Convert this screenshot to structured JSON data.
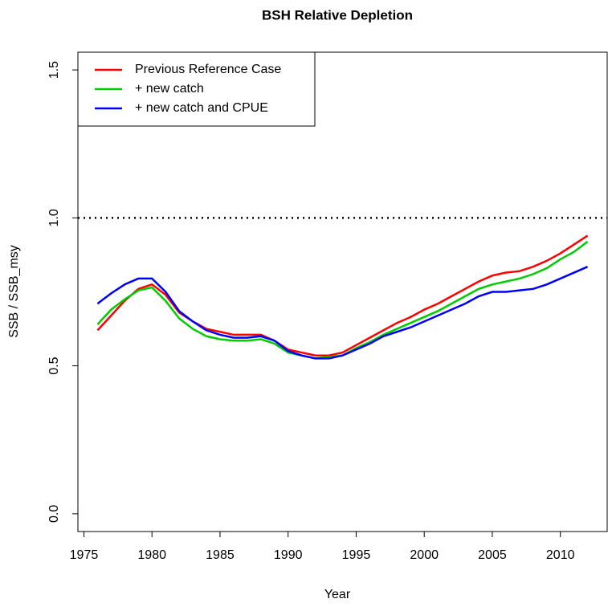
{
  "chart_data": {
    "type": "line",
    "title": "BSH Relative Depletion",
    "x_label": "Year",
    "y_label": "SSB / SSB_msy",
    "x": [
      1976,
      1977,
      1978,
      1979,
      1980,
      1981,
      1982,
      1983,
      1984,
      1985,
      1986,
      1987,
      1988,
      1989,
      1990,
      1991,
      1992,
      1993,
      1994,
      1995,
      1996,
      1997,
      1998,
      1999,
      2000,
      2001,
      2002,
      2003,
      2004,
      2005,
      2006,
      2007,
      2008,
      2009,
      2010,
      2011,
      2012
    ],
    "series": [
      {
        "name": "Previous Reference Case",
        "color": "#ff0000",
        "values": [
          0.62,
          0.67,
          0.72,
          0.76,
          0.775,
          0.74,
          0.68,
          0.65,
          0.625,
          0.615,
          0.605,
          0.605,
          0.605,
          0.585,
          0.555,
          0.545,
          0.535,
          0.535,
          0.545,
          0.57,
          0.595,
          0.62,
          0.645,
          0.665,
          0.69,
          0.71,
          0.735,
          0.76,
          0.785,
          0.805,
          0.815,
          0.82,
          0.835,
          0.855,
          0.88,
          0.91,
          0.94
        ]
      },
      {
        "name": "+ new catch",
        "color": "#00cd00",
        "values": [
          0.64,
          0.69,
          0.725,
          0.755,
          0.765,
          0.72,
          0.66,
          0.625,
          0.6,
          0.59,
          0.585,
          0.585,
          0.59,
          0.575,
          0.545,
          0.535,
          0.525,
          0.53,
          0.535,
          0.56,
          0.58,
          0.605,
          0.625,
          0.645,
          0.665,
          0.685,
          0.71,
          0.735,
          0.76,
          0.775,
          0.785,
          0.795,
          0.81,
          0.83,
          0.86,
          0.885,
          0.92
        ]
      },
      {
        "name": "+ new catch and CPUE",
        "color": "#0000ff",
        "values": [
          0.71,
          0.745,
          0.775,
          0.795,
          0.795,
          0.75,
          0.685,
          0.65,
          0.62,
          0.605,
          0.595,
          0.595,
          0.6,
          0.585,
          0.55,
          0.535,
          0.525,
          0.525,
          0.535,
          0.555,
          0.575,
          0.6,
          0.615,
          0.63,
          0.65,
          0.67,
          0.69,
          0.71,
          0.735,
          0.75,
          0.75,
          0.755,
          0.76,
          0.775,
          0.795,
          0.815,
          0.835
        ]
      }
    ],
    "xlim": [
      1974.56,
      2013.44
    ],
    "xticks": [
      1975,
      1980,
      1985,
      1990,
      1995,
      2000,
      2005,
      2010
    ],
    "ylim": [
      -0.06,
      1.56
    ],
    "yticks": [
      {
        "value": 0,
        "label": "0.0"
      },
      0.5,
      {
        "value": 1,
        "label": "1.0"
      },
      1.5
    ],
    "hline": 1,
    "legend": "top-left"
  }
}
